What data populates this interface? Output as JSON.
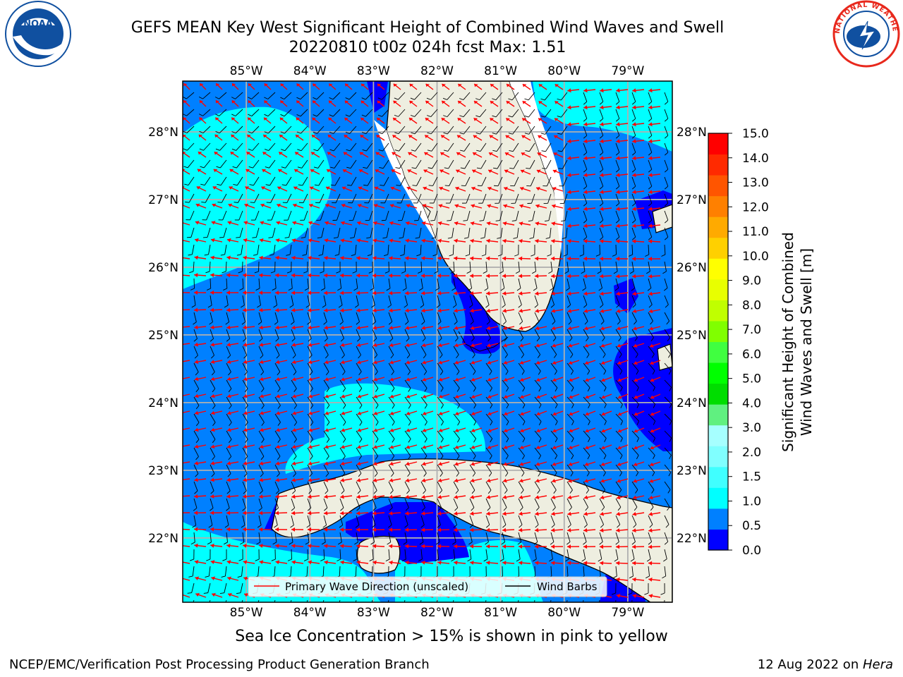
{
  "title_line1": "GEFS MEAN Key West Significant Height of Combined Wind Waves and Swell",
  "title_line2": "20220810 t00z 024h fcst   Max: 1.51",
  "lon_ticks": [
    "85°W",
    "84°W",
    "83°W",
    "82°W",
    "81°W",
    "80°W",
    "79°W"
  ],
  "lat_ticks": [
    "28°N",
    "27°N",
    "26°N",
    "25°N",
    "24°N",
    "23°N",
    "22°N"
  ],
  "map_extent": {
    "lon_min": -86.0,
    "lon_max": -78.3,
    "lat_min": 21.05,
    "lat_max": 28.75
  },
  "legend": {
    "wave_label": "Primary Wave Direction (unscaled)",
    "wind_label": "Wind Barbs",
    "wave_color": "#ff0000",
    "wind_color": "#000000"
  },
  "colorbar": {
    "label_line1": "Significant Height of Combined",
    "label_line2": "Wind Waves and Swell [m]",
    "levels": [
      "0.0",
      "0.5",
      "1.0",
      "1.5",
      "2.0",
      "3.0",
      "4.0",
      "5.0",
      "6.0",
      "7.0",
      "8.0",
      "9.0",
      "10.0",
      "11.0",
      "12.0",
      "13.0",
      "14.0",
      "15.0"
    ],
    "colors": [
      "#0000ff",
      "#0080ff",
      "#00ffff",
      "#40ffff",
      "#80ffff",
      "#a6ffff",
      "#60f080",
      "#00dd00",
      "#00ff00",
      "#40ff40",
      "#80ff00",
      "#c0ff00",
      "#e8ff00",
      "#ffff00",
      "#ffd000",
      "#ffaa00",
      "#ff8000",
      "#ff5500",
      "#ff2a00",
      "#ff0000"
    ]
  },
  "sea_ice_note": "Sea Ice Concentration > 15% is shown in pink to yellow",
  "credit": "NCEP/EMC/Verification Post Processing Product Generation Branch",
  "date_text": "12 Aug 2022 on ",
  "date_host": "Hera",
  "colors": {
    "land": "#eeeee0",
    "wave_0_05": "#0000ff",
    "wave_05_10": "#0080ff",
    "wave_10_15": "#00ffff",
    "grid": "#b0b0b0",
    "noaa_blue": "#1050a0",
    "nws_red": "#e8281c"
  },
  "logos": {
    "left": "NOAA",
    "right": "NATIONAL WEATHER SERVICE"
  }
}
